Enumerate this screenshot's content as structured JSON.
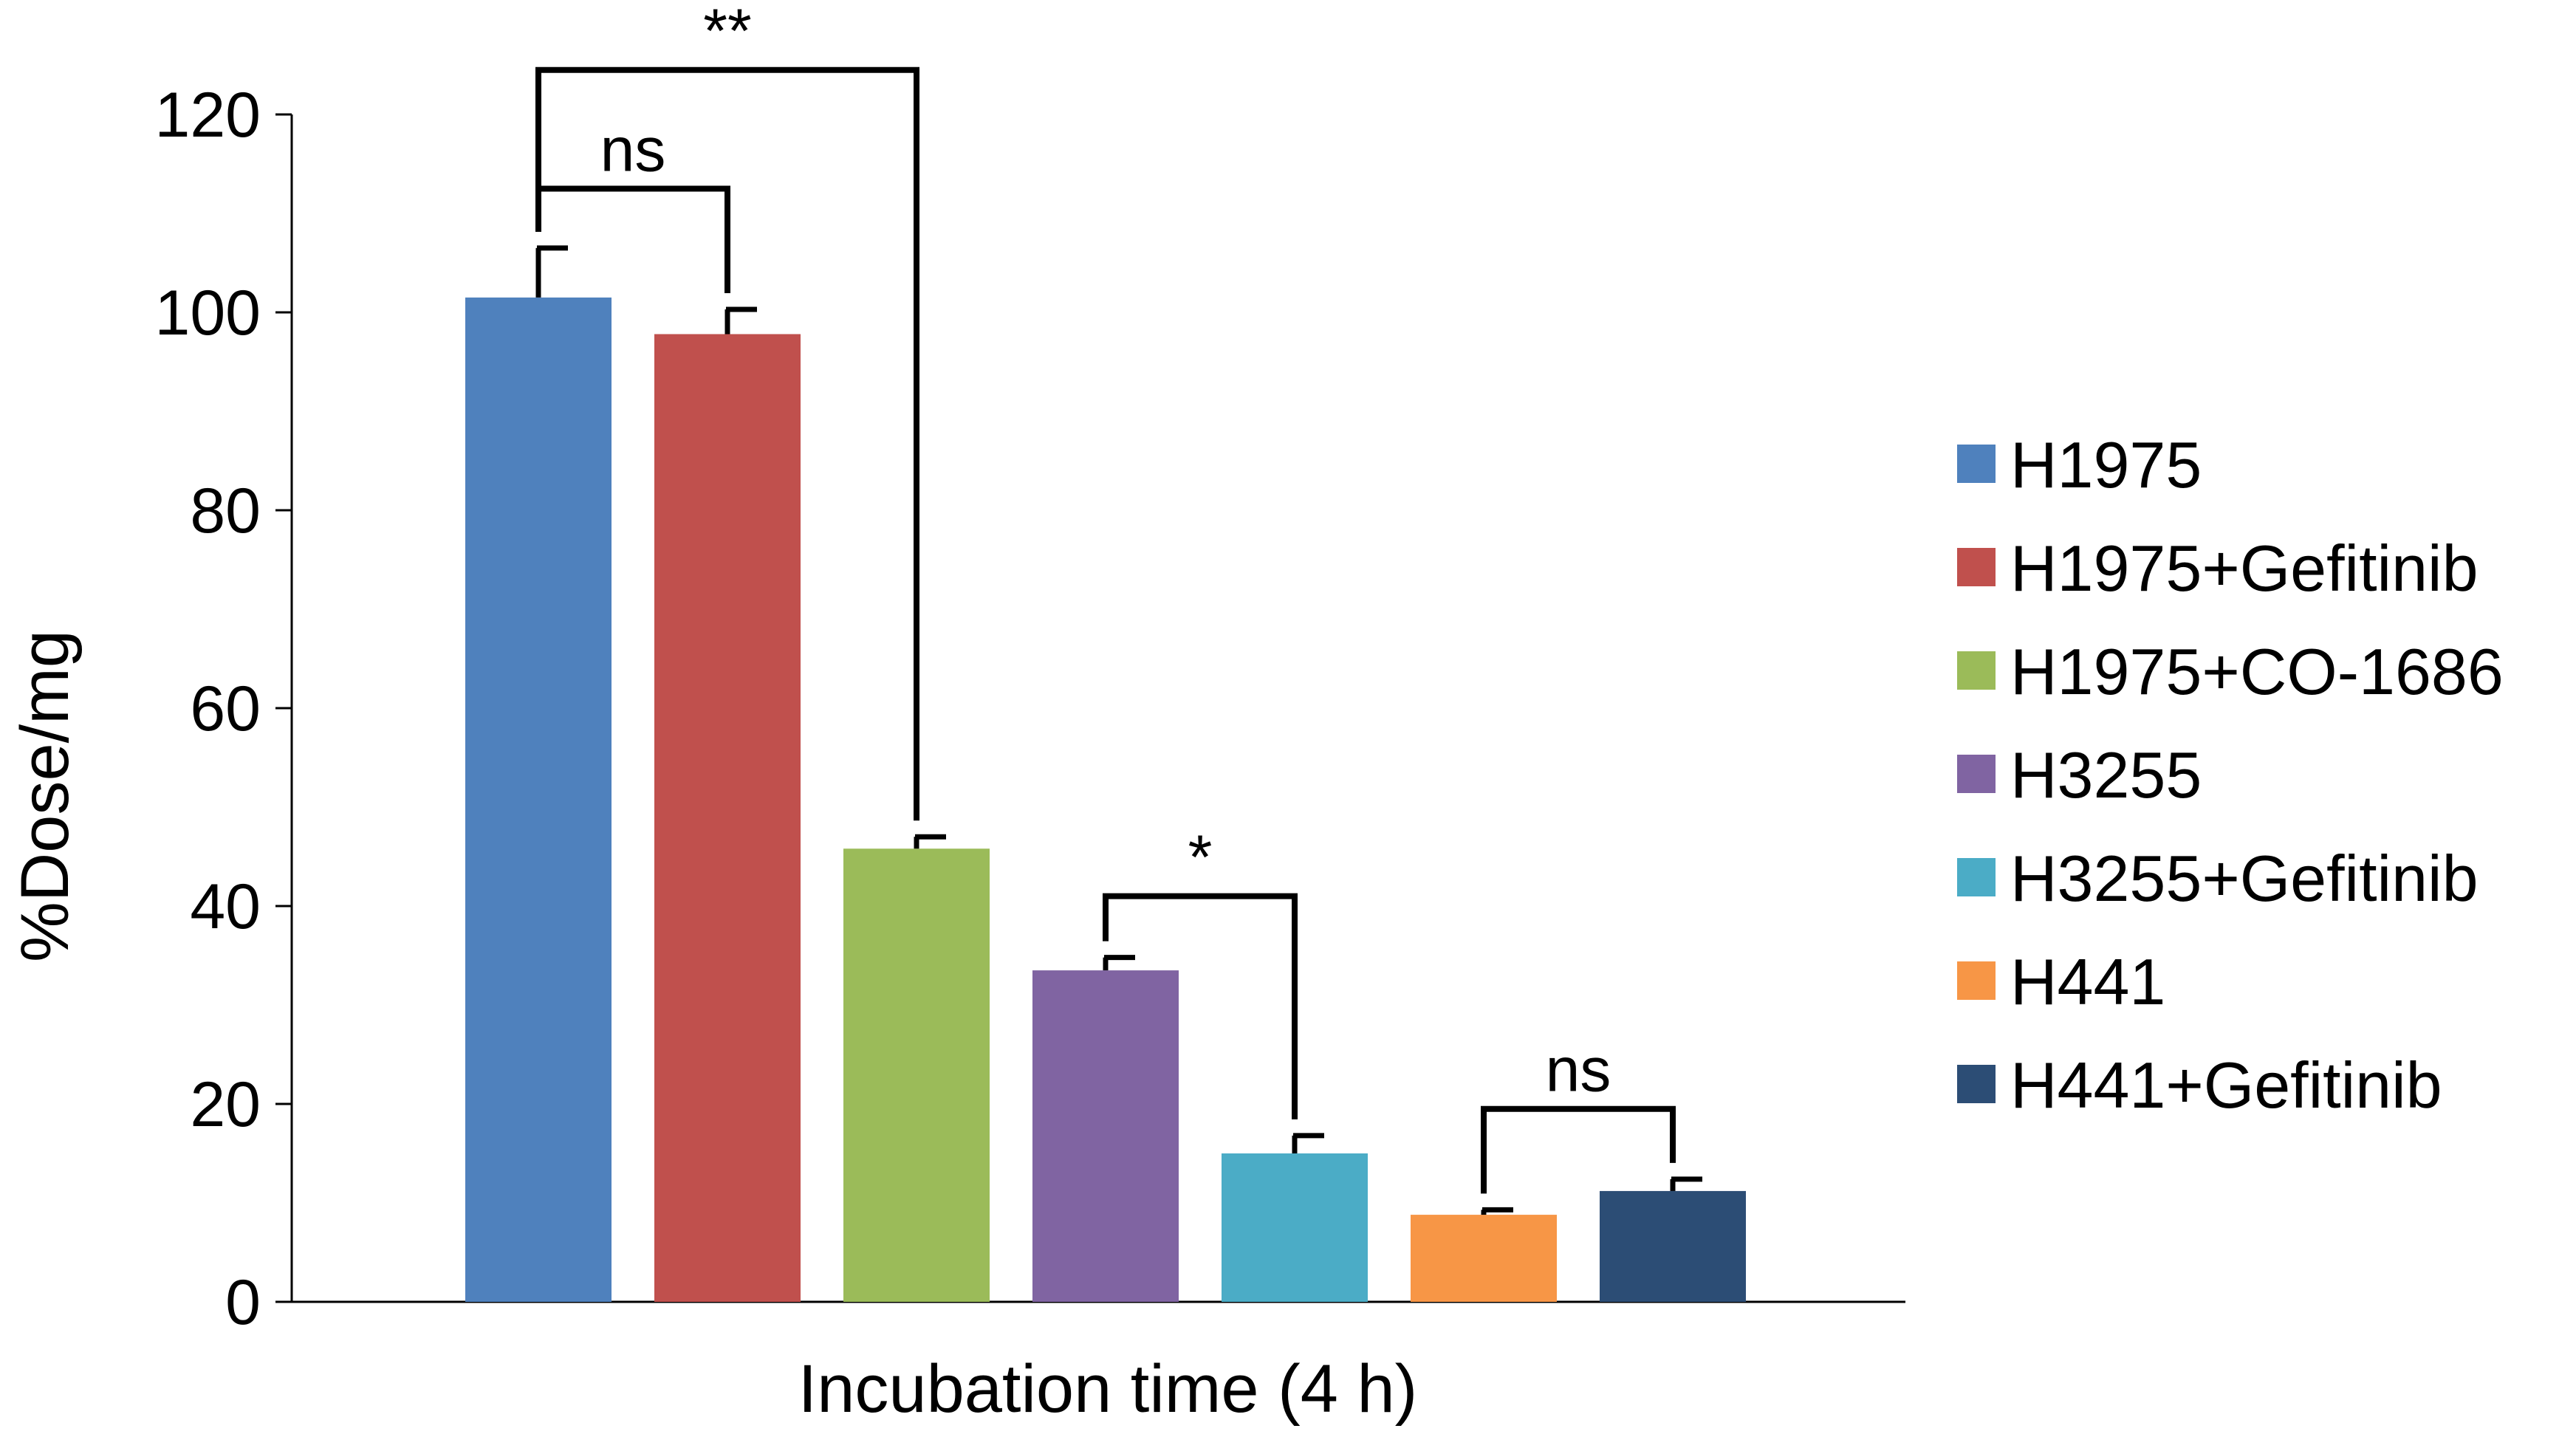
{
  "chart_data": {
    "type": "bar",
    "title": "",
    "xlabel": "Incubation time (4 h)",
    "ylabel": "%Dose/mg",
    "ylim": [
      0,
      120
    ],
    "yticks": [
      0,
      20,
      40,
      60,
      80,
      100,
      120
    ],
    "grid": false,
    "legend_position": "right",
    "series": [
      {
        "name": "H1975",
        "value": 101.5,
        "error": 5.0,
        "color": "#4F81BD"
      },
      {
        "name": "H1975+Gefitinib",
        "value": 97.8,
        "error": 2.5,
        "color": "#C0504D"
      },
      {
        "name": "H1975+CO-1686",
        "value": 45.8,
        "error": 1.2,
        "color": "#9BBB59"
      },
      {
        "name": "H3255",
        "value": 33.5,
        "error": 1.3,
        "color": "#8064A2"
      },
      {
        "name": "H3255+Gefitinib",
        "value": 15.0,
        "error": 1.8,
        "color": "#4BACC6"
      },
      {
        "name": "H441",
        "value": 8.8,
        "error": 0.5,
        "color": "#F79646"
      },
      {
        "name": "H441+Gefitinib",
        "value": 11.2,
        "error": 1.2,
        "color": "#2C4D75"
      }
    ],
    "significance": [
      {
        "from": 0,
        "to": 2,
        "label": "**",
        "level": 124.5
      },
      {
        "from": 0,
        "to": 1,
        "label": "ns",
        "level": 112.5
      },
      {
        "from": 3,
        "to": 4,
        "label": "*",
        "level": 41.0
      },
      {
        "from": 5,
        "to": 6,
        "label": "ns",
        "level": 19.5
      }
    ]
  }
}
